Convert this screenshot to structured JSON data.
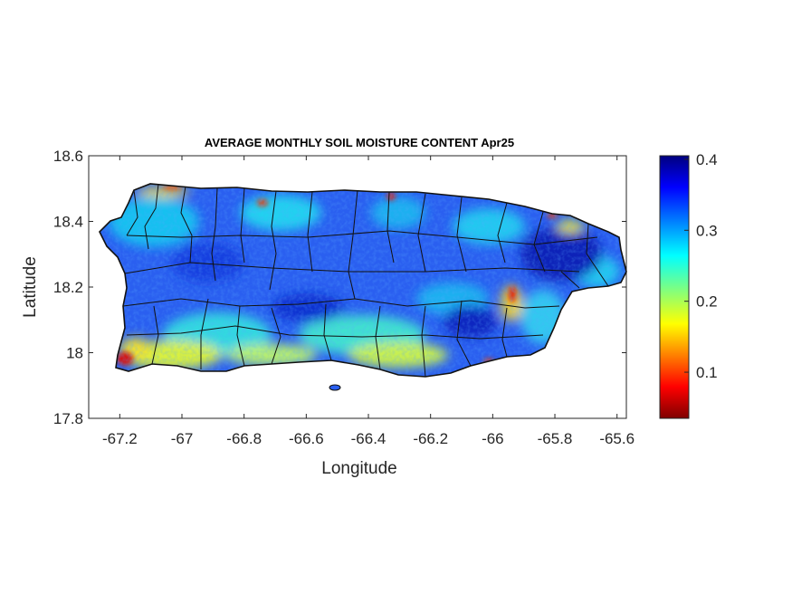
{
  "title": "AVERAGE MONTHLY SOIL MOISTURE CONTENT Apr25",
  "axes": {
    "xlabel": "Longitude",
    "ylabel": "Latitude",
    "xlim": [
      -67.3,
      -65.57
    ],
    "ylim": [
      17.8,
      18.6
    ],
    "xticks": [
      "-67.2",
      "-67",
      "-66.8",
      "-66.6",
      "-66.4",
      "-66.2",
      "-66",
      "-65.8",
      "-65.6"
    ],
    "yticks": [
      "18.6",
      "18.4",
      "18.2",
      "18",
      "17.8"
    ]
  },
  "colorbar": {
    "colormap": "jet",
    "range": [
      0.035,
      0.405
    ],
    "ticks": [
      "0.4",
      "0.3",
      "0.2",
      "0.1"
    ],
    "stops": [
      "#7f0000",
      "#ff0000",
      "#ffff00",
      "#00ffff",
      "#0000ff",
      "#00007f"
    ]
  },
  "map": {
    "region": "Puerto Rico",
    "variable": "soil moisture content",
    "boundaries": "municipal",
    "colors": {
      "wet": "#1f3fe0",
      "moderate": "#1ab0f0",
      "dry": "#e6f040",
      "very_dry": "#d81010",
      "outline": "#111111"
    }
  }
}
